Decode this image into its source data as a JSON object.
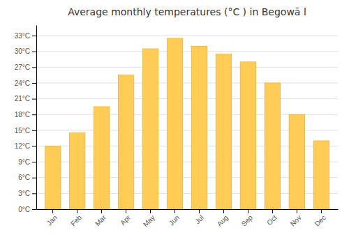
{
  "chart_data": {
    "type": "bar",
    "title": "Average monthly temperatures (°C ) in Begowā l",
    "categories": [
      "Jan",
      "Feb",
      "Mar",
      "Apr",
      "May",
      "Jun",
      "Jul",
      "Aug",
      "Sep",
      "Oct",
      "Nov",
      "Dec"
    ],
    "values": [
      12,
      14.5,
      19.5,
      25.5,
      30.5,
      32.5,
      31,
      29.5,
      28,
      24,
      18,
      13
    ],
    "color": "#FFCC55",
    "ylim": [
      0,
      35
    ],
    "yticks": [
      {
        "value": 0,
        "label": "0°C"
      },
      {
        "value": 3,
        "label": "3°C"
      },
      {
        "value": 6,
        "label": "6°C"
      },
      {
        "value": 9,
        "label": "9°C"
      },
      {
        "value": 12,
        "label": "12°C"
      },
      {
        "value": 15,
        "label": "15°C"
      },
      {
        "value": 18,
        "label": "18°C"
      },
      {
        "value": 21,
        "label": "21°C"
      },
      {
        "value": 24,
        "label": "24°C"
      },
      {
        "value": 27,
        "label": "27°C"
      },
      {
        "value": 30,
        "label": "30°C"
      },
      {
        "value": 33,
        "label": "33°C"
      }
    ],
    "grid": true
  }
}
